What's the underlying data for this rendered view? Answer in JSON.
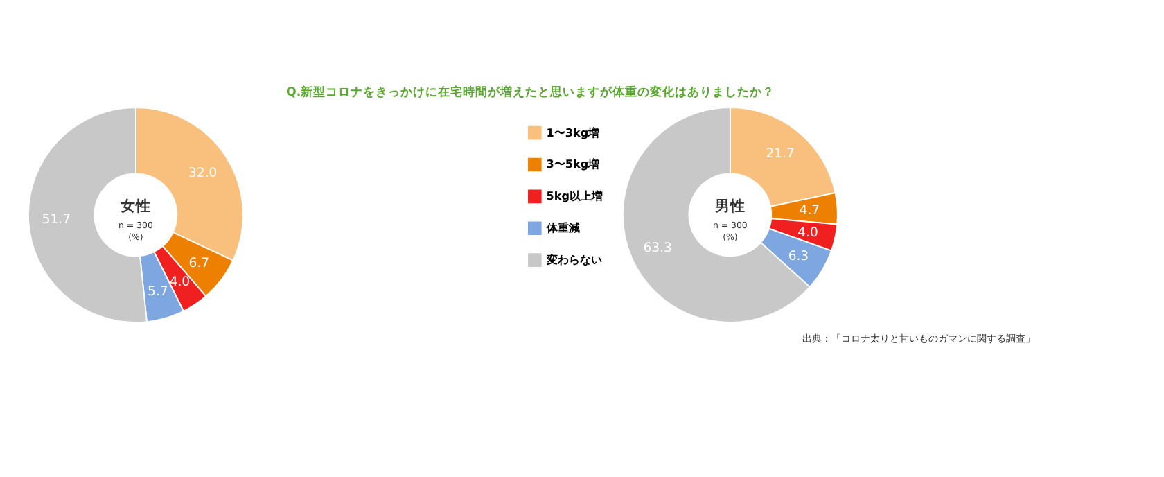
{
  "chart_data": [
    {
      "type": "donut",
      "title": "Q.新型コロナをきっかけに在宅時間が増えたと思いますが体重の変化はありましたか？",
      "subtitle": "女性",
      "annotations": [
        "n = 300",
        "(%)"
      ],
      "categories": [
        "1〜3kg増",
        "3〜5kg増",
        "5kg以上増",
        "体重減",
        "変わらない"
      ],
      "values": [
        32.0,
        6.7,
        4.0,
        5.7,
        51.7
      ],
      "value_labels": [
        "32.0",
        "6.7",
        "4.0",
        "5.7",
        "51.7"
      ],
      "colors": [
        "#f8c07c",
        "#ee8000",
        "#f02020",
        "#7ea6e0",
        "#c8c8c8"
      ],
      "legend": "right"
    },
    {
      "type": "donut",
      "subtitle": "男性",
      "annotations": [
        "n = 300",
        "(%)",
        "出典：「コロナ太りと甘いものガマンに関する調査」"
      ],
      "categories": [
        null,
        null,
        null,
        null,
        null
      ],
      "values": [
        21.7,
        4.7,
        4.0,
        6.3,
        63.3
      ],
      "value_labels": [
        "21.7",
        "4.7",
        "4.0",
        "6.3",
        "63.3"
      ],
      "colors": [
        "#f8c07c",
        "#ee8000",
        "#f02020",
        "#7ea6e0",
        "#c8c8c8"
      ]
    }
  ]
}
